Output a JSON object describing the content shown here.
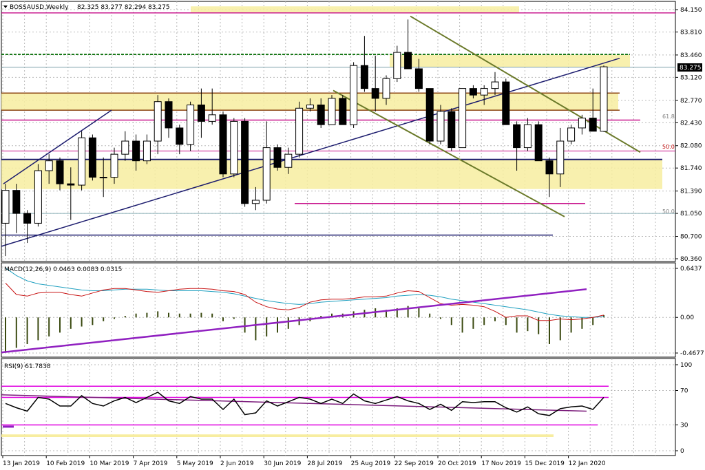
{
  "header": {
    "symbol": "BOSSAUSD,Weekly",
    "ohlc": "82.325 83.277 82.294 83.275"
  },
  "price_panel": {
    "current_price": "83.275",
    "fib_labels": [
      "61.8",
      "50.0",
      "50.0"
    ]
  },
  "macd_panel": {
    "label": "MACD(12,26,9) 0.0463 0.0083 0.0315"
  },
  "rsi_panel": {
    "label": "RSI(9) 61.7838"
  },
  "colors": {
    "bull": "#ffffff",
    "bear": "#000000",
    "zone": "#f7eda0",
    "trend_navy": "#1c1c6e",
    "trend_olive": "#6b7a2a",
    "magenta": "#c8148c",
    "brown": "#8b4513",
    "green": "#1a7a1a",
    "macd_signal": "#c81414",
    "macd_main": "#20a0c0",
    "macd_hist": "#3a4a10",
    "rsi_line": "#000000",
    "rsi_level": "#e000e0",
    "rsi_trend": "#7a1a7a"
  },
  "chart_data": [
    {
      "type": "candlestick",
      "title": "BOSSAUSD,Weekly",
      "ylim": [
        80.36,
        84.15
      ],
      "y_ticks": [
        "84.150",
        "83.810",
        "83.460",
        "83.120",
        "82.770",
        "82.430",
        "82.080",
        "81.740",
        "81.390",
        "81.050",
        "80.700",
        "80.360"
      ],
      "x_ticks": [
        "13 Jan 2019",
        "10 Feb 2019",
        "10 Mar 2019",
        "7 Apr 2019",
        "5 May 2019",
        "2 Jun 2019",
        "30 Jun 2019",
        "28 Jul 2019",
        "25 Aug 2019",
        "22 Sep 2019",
        "20 Oct 2019",
        "17 Nov 2019",
        "15 Dec 2019",
        "12 Jan 2020"
      ],
      "candles": [
        {
          "o": 80.9,
          "h": 81.5,
          "l": 80.4,
          "c": 81.4
        },
        {
          "o": 81.4,
          "h": 81.5,
          "l": 80.75,
          "c": 81.05
        },
        {
          "o": 81.05,
          "h": 81.1,
          "l": 80.6,
          "c": 80.9
        },
        {
          "o": 80.9,
          "h": 81.8,
          "l": 80.85,
          "c": 81.7
        },
        {
          "o": 81.7,
          "h": 81.95,
          "l": 81.5,
          "c": 81.85
        },
        {
          "o": 81.85,
          "h": 81.9,
          "l": 81.4,
          "c": 81.5
        },
        {
          "o": 81.5,
          "h": 81.75,
          "l": 80.95,
          "c": 81.48
        },
        {
          "o": 81.48,
          "h": 82.3,
          "l": 81.4,
          "c": 82.2
        },
        {
          "o": 82.2,
          "h": 82.25,
          "l": 81.55,
          "c": 81.6
        },
        {
          "o": 81.6,
          "h": 81.9,
          "l": 81.3,
          "c": 81.6
        },
        {
          "o": 81.6,
          "h": 82.05,
          "l": 81.5,
          "c": 81.95
        },
        {
          "o": 81.95,
          "h": 82.3,
          "l": 81.85,
          "c": 82.15
        },
        {
          "o": 82.15,
          "h": 82.25,
          "l": 81.7,
          "c": 81.85
        },
        {
          "o": 81.85,
          "h": 82.25,
          "l": 81.8,
          "c": 82.15
        },
        {
          "o": 82.15,
          "h": 82.85,
          "l": 81.95,
          "c": 82.75
        },
        {
          "o": 82.75,
          "h": 82.8,
          "l": 82.2,
          "c": 82.35
        },
        {
          "o": 82.35,
          "h": 82.4,
          "l": 81.95,
          "c": 82.1
        },
        {
          "o": 82.1,
          "h": 82.75,
          "l": 82.0,
          "c": 82.7
        },
        {
          "o": 82.7,
          "h": 82.95,
          "l": 82.2,
          "c": 82.45
        },
        {
          "o": 82.45,
          "h": 82.95,
          "l": 82.4,
          "c": 82.55
        },
        {
          "o": 82.55,
          "h": 82.6,
          "l": 81.6,
          "c": 81.65
        },
        {
          "o": 81.65,
          "h": 82.5,
          "l": 81.6,
          "c": 82.45
        },
        {
          "o": 82.45,
          "h": 82.5,
          "l": 81.15,
          "c": 81.2
        },
        {
          "o": 81.2,
          "h": 81.45,
          "l": 81.1,
          "c": 81.25
        },
        {
          "o": 81.25,
          "h": 82.45,
          "l": 81.2,
          "c": 82.05
        },
        {
          "o": 82.05,
          "h": 82.1,
          "l": 81.7,
          "c": 81.75
        },
        {
          "o": 81.75,
          "h": 82.05,
          "l": 81.65,
          "c": 81.95
        },
        {
          "o": 81.95,
          "h": 82.75,
          "l": 81.9,
          "c": 82.65
        },
        {
          "o": 82.65,
          "h": 82.8,
          "l": 82.6,
          "c": 82.7
        },
        {
          "o": 82.7,
          "h": 82.8,
          "l": 82.35,
          "c": 82.4
        },
        {
          "o": 82.4,
          "h": 82.85,
          "l": 82.4,
          "c": 82.8
        },
        {
          "o": 82.8,
          "h": 82.85,
          "l": 82.4,
          "c": 82.4
        },
        {
          "o": 82.4,
          "h": 83.35,
          "l": 82.35,
          "c": 83.3
        },
        {
          "o": 83.3,
          "h": 83.75,
          "l": 82.9,
          "c": 82.95
        },
        {
          "o": 82.95,
          "h": 83.45,
          "l": 82.6,
          "c": 82.8
        },
        {
          "o": 82.8,
          "h": 83.15,
          "l": 82.7,
          "c": 83.1
        },
        {
          "o": 83.1,
          "h": 83.6,
          "l": 83.05,
          "c": 83.5
        },
        {
          "o": 83.5,
          "h": 84.0,
          "l": 83.25,
          "c": 83.25
        },
        {
          "o": 83.25,
          "h": 83.4,
          "l": 82.9,
          "c": 82.95
        },
        {
          "o": 82.95,
          "h": 82.95,
          "l": 82.1,
          "c": 82.15
        },
        {
          "o": 82.15,
          "h": 82.7,
          "l": 82.1,
          "c": 82.6
        },
        {
          "o": 82.6,
          "h": 82.65,
          "l": 82.0,
          "c": 82.05
        },
        {
          "o": 82.05,
          "h": 82.95,
          "l": 82.05,
          "c": 82.95
        },
        {
          "o": 82.95,
          "h": 83.0,
          "l": 82.8,
          "c": 82.85
        },
        {
          "o": 82.85,
          "h": 83.0,
          "l": 82.7,
          "c": 82.95
        },
        {
          "o": 82.95,
          "h": 83.2,
          "l": 82.85,
          "c": 83.05
        },
        {
          "o": 83.05,
          "h": 83.1,
          "l": 82.4,
          "c": 82.4
        },
        {
          "o": 82.4,
          "h": 82.45,
          "l": 81.7,
          "c": 82.05
        },
        {
          "o": 82.05,
          "h": 82.5,
          "l": 82.0,
          "c": 82.4
        },
        {
          "o": 82.4,
          "h": 82.45,
          "l": 81.85,
          "c": 81.85
        },
        {
          "o": 81.85,
          "h": 81.9,
          "l": 81.3,
          "c": 81.65
        },
        {
          "o": 81.65,
          "h": 82.35,
          "l": 81.45,
          "c": 82.15
        },
        {
          "o": 82.15,
          "h": 82.4,
          "l": 82.1,
          "c": 82.35
        },
        {
          "o": 82.35,
          "h": 82.55,
          "l": 82.25,
          "c": 82.5
        },
        {
          "o": 82.5,
          "h": 82.95,
          "l": 82.3,
          "c": 82.3
        },
        {
          "o": 82.3,
          "h": 83.3,
          "l": 82.29,
          "c": 83.28
        }
      ],
      "zones": [
        {
          "from": 83.28,
          "to": 83.46
        },
        {
          "from": 82.62,
          "to": 82.88
        },
        {
          "from": 81.42,
          "to": 81.87
        },
        {
          "from": 84.1,
          "to": 84.2
        }
      ],
      "levels": [
        {
          "name": "magenta-top",
          "y": 84.1
        },
        {
          "name": "green",
          "y": 83.47
        },
        {
          "name": "brown-upper",
          "y": 82.88
        },
        {
          "name": "brown-lower",
          "y": 82.62
        },
        {
          "name": "fib-61.8",
          "y": 82.47
        },
        {
          "name": "fib-50.0-upper",
          "y": 82.0
        },
        {
          "name": "navy-support",
          "y": 81.87
        },
        {
          "name": "magenta-lower",
          "y": 81.2
        },
        {
          "name": "fib-50.0-lower",
          "y": 81.05
        },
        {
          "name": "navy-bottom",
          "y": 80.72
        }
      ]
    },
    {
      "type": "bar",
      "title": "MACD(12,26,9) 0.0463 0.0083 0.0315",
      "ylim": [
        -0.4677,
        0.6437
      ],
      "y_ticks": [
        "0.6437",
        "0.00",
        "-0.4677"
      ],
      "histogram": [
        -0.45,
        -0.4,
        -0.35,
        -0.3,
        -0.25,
        -0.2,
        -0.15,
        -0.12,
        -0.1,
        -0.05,
        -0.02,
        0.02,
        0.05,
        0.06,
        0.08,
        0.06,
        0.05,
        0.05,
        0.06,
        0.05,
        -0.05,
        -0.02,
        -0.2,
        -0.3,
        -0.25,
        -0.2,
        -0.15,
        -0.1,
        -0.05,
        0.02,
        0.05,
        0.05,
        0.08,
        0.1,
        0.12,
        0.1,
        0.12,
        0.15,
        0.12,
        0.05,
        -0.02,
        -0.1,
        -0.2,
        -0.15,
        -0.1,
        -0.05,
        -0.1,
        -0.2,
        -0.18,
        -0.22,
        -0.35,
        -0.3,
        -0.2,
        -0.15,
        -0.1,
        0.03
      ],
      "signal": [
        0.45,
        0.3,
        0.28,
        0.32,
        0.33,
        0.33,
        0.3,
        0.28,
        0.32,
        0.36,
        0.38,
        0.38,
        0.36,
        0.34,
        0.33,
        0.35,
        0.37,
        0.38,
        0.38,
        0.37,
        0.35,
        0.34,
        0.3,
        0.2,
        0.14,
        0.11,
        0.1,
        0.13,
        0.2,
        0.23,
        0.24,
        0.24,
        0.25,
        0.27,
        0.27,
        0.28,
        0.32,
        0.35,
        0.34,
        0.26,
        0.18,
        0.16,
        0.17,
        0.16,
        0.14,
        0.08,
        0.0,
        0.02,
        0.02,
        -0.04,
        -0.04,
        -0.02,
        -0.03,
        -0.02,
        0.0,
        0.03
      ],
      "main": [
        0.65,
        0.55,
        0.48,
        0.44,
        0.42,
        0.4,
        0.38,
        0.36,
        0.35,
        0.35,
        0.36,
        0.37,
        0.37,
        0.37,
        0.36,
        0.35,
        0.35,
        0.35,
        0.35,
        0.34,
        0.33,
        0.31,
        0.28,
        0.25,
        0.22,
        0.2,
        0.18,
        0.17,
        0.18,
        0.2,
        0.21,
        0.22,
        0.23,
        0.24,
        0.25,
        0.26,
        0.28,
        0.29,
        0.3,
        0.29,
        0.27,
        0.24,
        0.22,
        0.2,
        0.18,
        0.16,
        0.14,
        0.12,
        0.1,
        0.07,
        0.04,
        0.02,
        0.01,
        0.0,
        0.0,
        0.01
      ]
    },
    {
      "type": "line",
      "title": "RSI(9) 61.7838",
      "ylim": [
        0,
        100
      ],
      "y_ticks": [
        "100",
        "70",
        "30",
        "0"
      ],
      "values": [
        55,
        50,
        46,
        62,
        60,
        52,
        52,
        64,
        55,
        52,
        58,
        62,
        56,
        62,
        68,
        58,
        55,
        63,
        60,
        60,
        48,
        60,
        42,
        44,
        58,
        52,
        57,
        62,
        60,
        55,
        60,
        55,
        66,
        58,
        55,
        59,
        63,
        58,
        55,
        48,
        54,
        47,
        57,
        56,
        57,
        57,
        50,
        45,
        51,
        43,
        41,
        49,
        51,
        52,
        48,
        62
      ],
      "levels": [
        75,
        62,
        30,
        18
      ]
    }
  ]
}
